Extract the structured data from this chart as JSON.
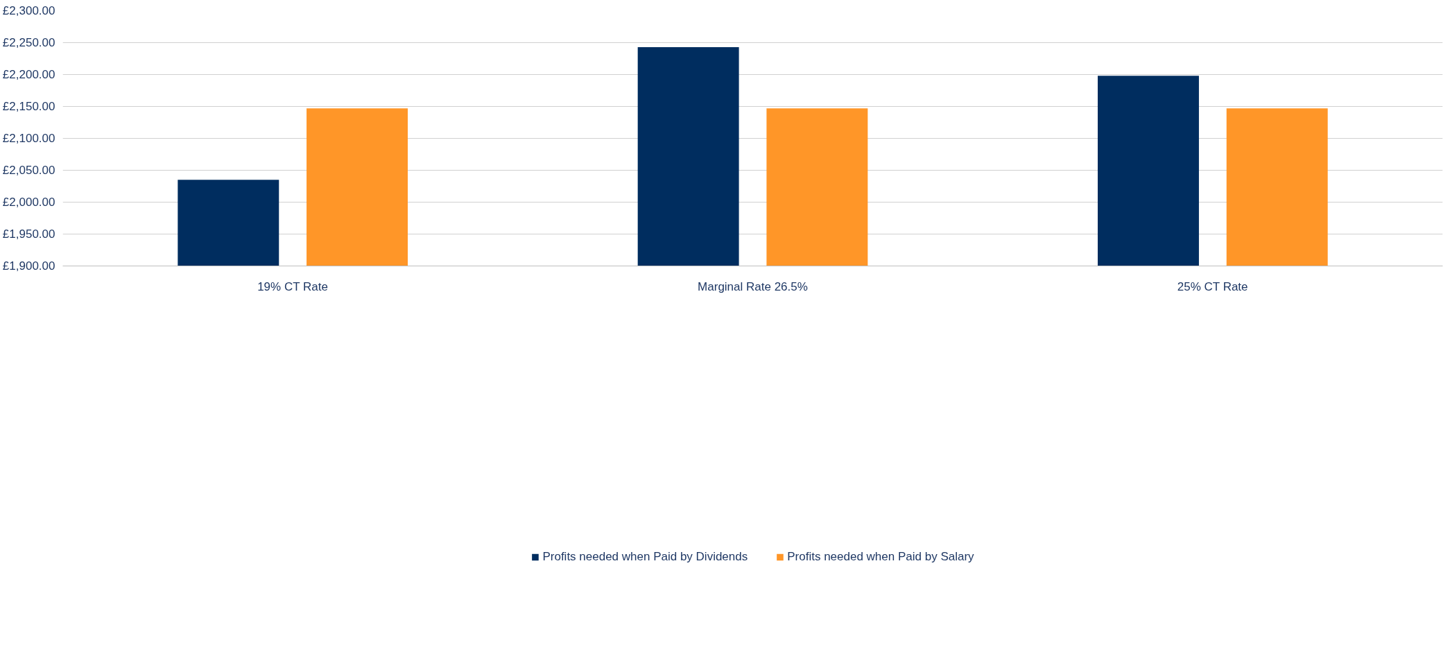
{
  "chart_data": {
    "type": "bar",
    "categories": [
      "19% CT Rate",
      "Marginal Rate 26.5%",
      "25% CT Rate"
    ],
    "series": [
      {
        "name": "Profits needed when Paid by Dividends",
        "color": "#002d5f",
        "values": [
          2035,
          2243,
          2198
        ]
      },
      {
        "name": "Profits needed when Paid by Salary",
        "color": "#ff9628",
        "values": [
          2147,
          2147,
          2147
        ]
      }
    ],
    "ylim": [
      1900,
      2300
    ],
    "yticks": [
      {
        "value": 1900,
        "label": "£1,900.00"
      },
      {
        "value": 1950,
        "label": "£1,950.00"
      },
      {
        "value": 2000,
        "label": "£2,000.00"
      },
      {
        "value": 2050,
        "label": "£2,050.00"
      },
      {
        "value": 2100,
        "label": "£2,100.00"
      },
      {
        "value": 2150,
        "label": "£2,150.00"
      },
      {
        "value": 2200,
        "label": "£2,200.00"
      },
      {
        "value": 2250,
        "label": "£2,250.00"
      },
      {
        "value": 2300,
        "label": "£2,300.00"
      }
    ],
    "grid": "y",
    "legend": "bottom"
  }
}
